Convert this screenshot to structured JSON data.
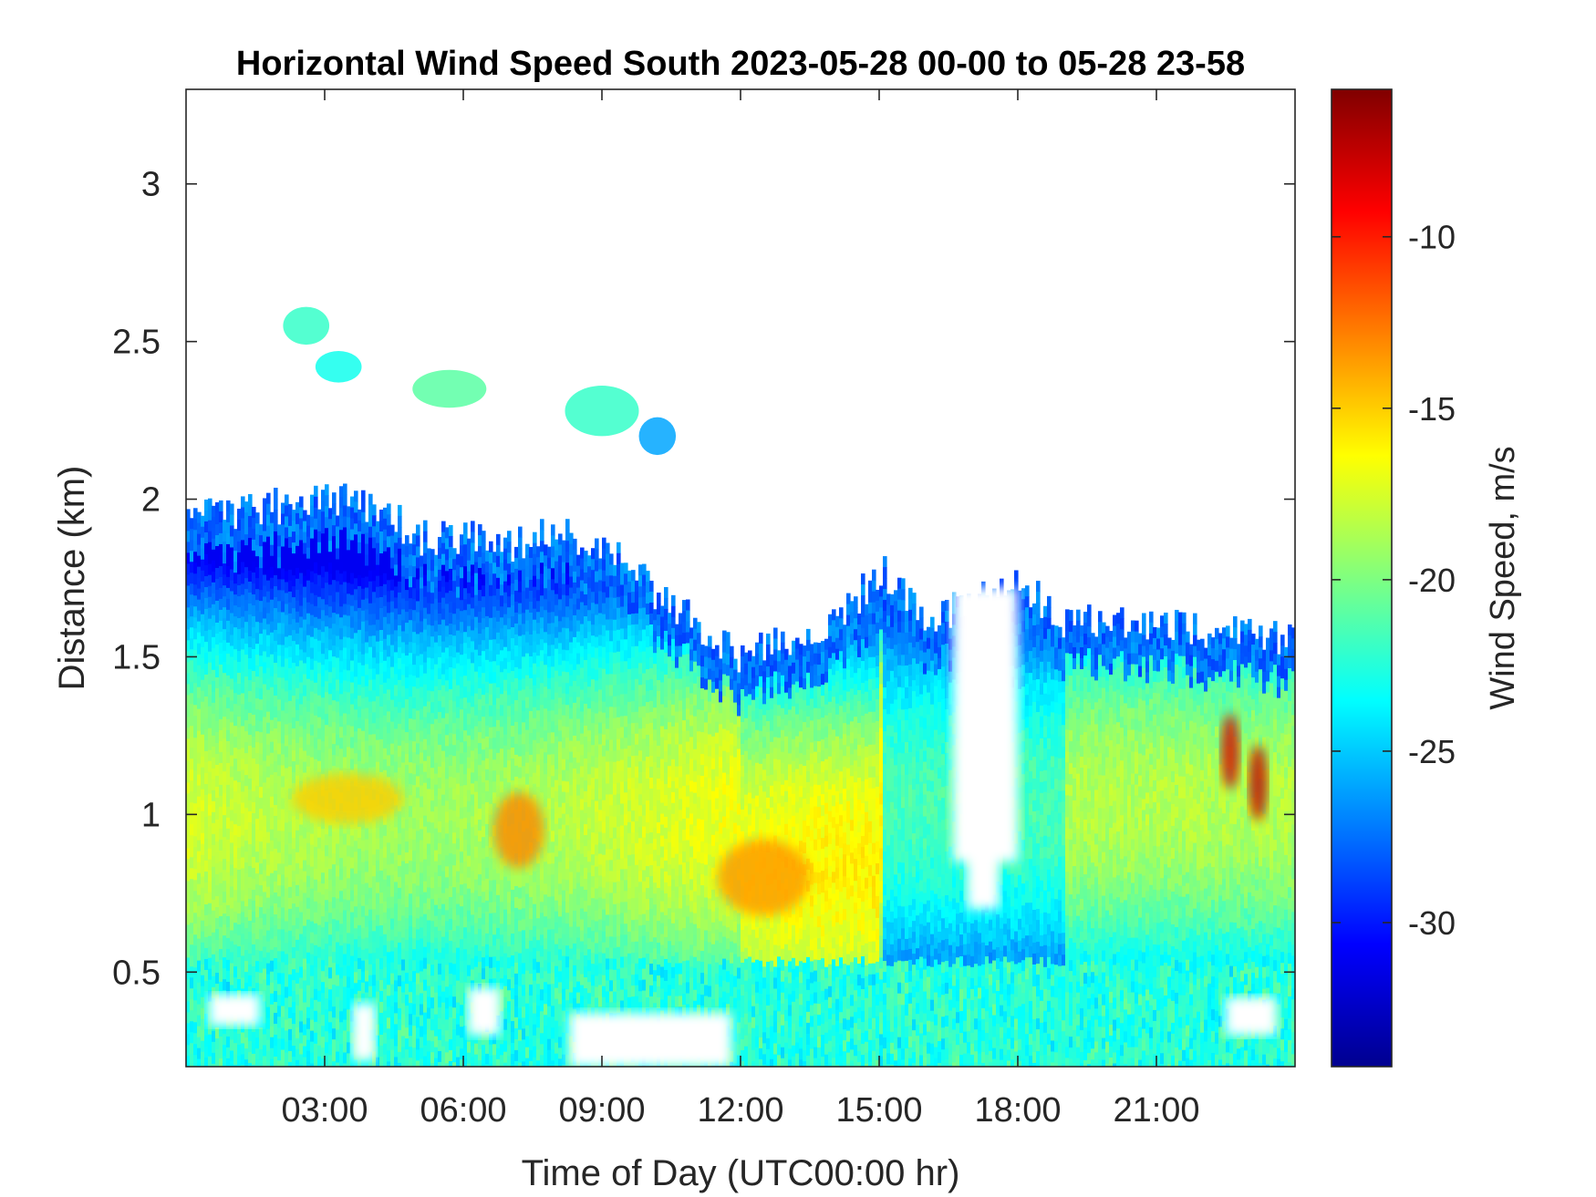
{
  "chart_data": {
    "type": "heatmap",
    "title": "Horizontal Wind Speed South 2023-05-28 00-00 to 05-28 23-58",
    "xlabel": "Time of Day (UTC00:00 hr)",
    "ylabel": "Distance (km)",
    "xlim": [
      0,
      24
    ],
    "ylim": [
      0.2,
      3.3
    ],
    "x_ticks": [
      3,
      6,
      9,
      12,
      15,
      18,
      21
    ],
    "x_tick_labels": [
      "03:00",
      "06:00",
      "09:00",
      "12:00",
      "15:00",
      "18:00",
      "21:00"
    ],
    "y_ticks": [
      0.5,
      1,
      1.5,
      2,
      2.5,
      3
    ],
    "y_tick_labels": [
      "0.5",
      "1",
      "1.5",
      "2",
      "2.5",
      "3"
    ],
    "colorbar": {
      "label": "Wind Speed, m/s",
      "colormap": "jet",
      "range": [
        -34.2,
        -5.7
      ],
      "ticks": [
        -30,
        -25,
        -20,
        -15,
        -10
      ],
      "tick_labels": [
        "-30",
        "-25",
        "-20",
        "-15",
        "-10"
      ],
      "colors": [
        "#00008f",
        "#0000ff",
        "#00ffff",
        "#ffff00",
        "#ff0000",
        "#800000"
      ]
    },
    "data_top_profile": {
      "hours": [
        0,
        1,
        2,
        3,
        4,
        5,
        6,
        7,
        8,
        9,
        10,
        11,
        12,
        13,
        14,
        15,
        16,
        17,
        18,
        19,
        20,
        21,
        22,
        23,
        24
      ],
      "top_km": [
        1.95,
        1.95,
        1.98,
        2.0,
        1.98,
        1.88,
        1.88,
        1.85,
        1.9,
        1.85,
        1.72,
        1.6,
        1.5,
        1.55,
        1.6,
        1.78,
        1.6,
        1.68,
        1.75,
        1.6,
        1.62,
        1.6,
        1.58,
        1.57,
        1.54
      ]
    },
    "grid": false,
    "legend": "colorbar-right"
  }
}
